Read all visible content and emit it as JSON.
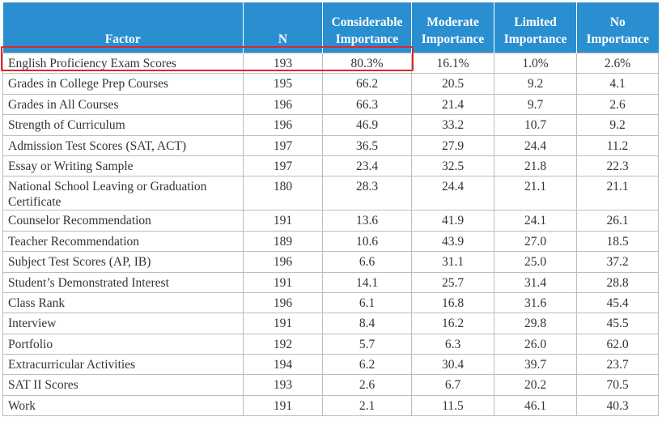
{
  "table": {
    "header": [
      "Factor",
      "N",
      "Considerable Importance",
      "Moderate Importance",
      "Limited Importance",
      "No Importance"
    ],
    "rows": [
      [
        "English Proficiency Exam Scores",
        "193",
        "80.3%",
        "16.1%",
        "1.0%",
        "2.6%"
      ],
      [
        "Grades in College Prep Courses",
        "195",
        "66.2",
        "20.5",
        "9.2",
        "4.1"
      ],
      [
        "Grades in All Courses",
        "196",
        "66.3",
        "21.4",
        "9.7",
        "2.6"
      ],
      [
        "Strength of Curriculum",
        "196",
        "46.9",
        "33.2",
        "10.7",
        "9.2"
      ],
      [
        "Admission Test Scores (SAT, ACT)",
        "197",
        "36.5",
        "27.9",
        "24.4",
        "11.2"
      ],
      [
        "Essay or Writing Sample",
        "197",
        "23.4",
        "32.5",
        "21.8",
        "22.3"
      ],
      [
        "National School Leaving or Graduation Certificate",
        "180",
        "28.3",
        "24.4",
        "21.1",
        "21.1"
      ],
      [
        "Counselor Recommendation",
        "191",
        "13.6",
        "41.9",
        "24.1",
        "26.1"
      ],
      [
        "Teacher Recommendation",
        "189",
        "10.6",
        "43.9",
        "27.0",
        "18.5"
      ],
      [
        "Subject Test Scores (AP, IB)",
        "196",
        "6.6",
        "31.1",
        "25.0",
        "37.2"
      ],
      [
        "Student’s Demonstrated Interest",
        "191",
        "14.1",
        "25.7",
        "31.4",
        "28.8"
      ],
      [
        "Class Rank",
        "196",
        "6.1",
        "16.8",
        "31.6",
        "45.4"
      ],
      [
        "Interview",
        "191",
        "8.4",
        "16.2",
        "29.8",
        "45.5"
      ],
      [
        "Portfolio",
        "192",
        "5.7",
        "6.3",
        "26.0",
        "62.0"
      ],
      [
        "Extracurricular Activities",
        "194",
        "6.2",
        "30.4",
        "39.7",
        "23.7"
      ],
      [
        "SAT II Scores",
        "193",
        "2.6",
        "6.7",
        "20.2",
        "70.5"
      ],
      [
        "Work",
        "191",
        "2.1",
        "11.5",
        "46.1",
        "40.3"
      ]
    ]
  }
}
